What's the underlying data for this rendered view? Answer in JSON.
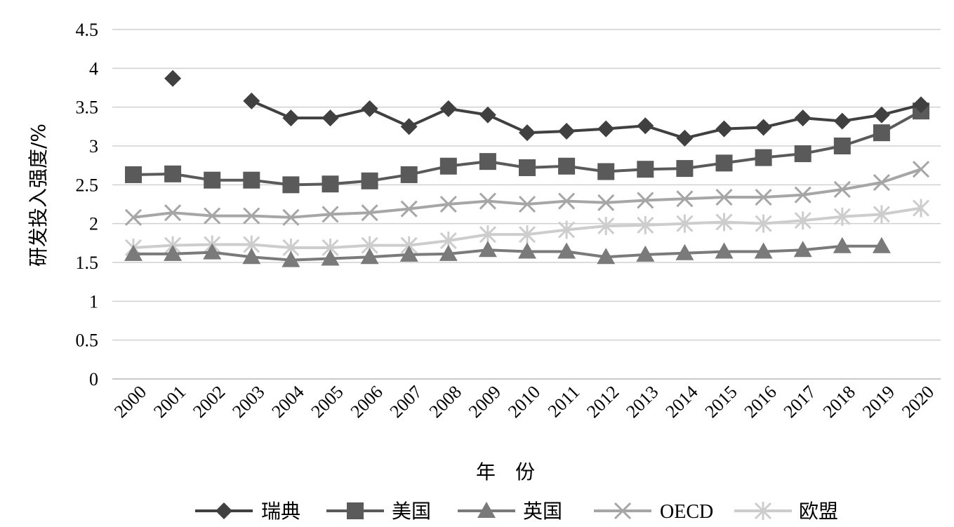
{
  "chart_data": {
    "type": "line",
    "xlabel": "年　份",
    "ylabel": "研发投入强度/%",
    "ylim": [
      0,
      4.5
    ],
    "yticks": [
      "0",
      "0.5",
      "1",
      "1.5",
      "2",
      "2.5",
      "3",
      "3.5",
      "4",
      "4.5"
    ],
    "grid": "horizontal",
    "legend": "bottom",
    "categories": [
      "2000",
      "2001",
      "2002",
      "2003",
      "2004",
      "2005",
      "2006",
      "2007",
      "2008",
      "2009",
      "2010",
      "2011",
      "2012",
      "2013",
      "2014",
      "2015",
      "2016",
      "2017",
      "2018",
      "2019",
      "2020"
    ],
    "series": [
      {
        "name": "瑞典",
        "marker": "diamond",
        "color": "#404040",
        "values": [
          null,
          3.87,
          null,
          3.58,
          3.36,
          3.36,
          3.48,
          3.25,
          3.48,
          3.4,
          3.17,
          3.19,
          3.22,
          3.26,
          3.1,
          3.22,
          3.24,
          3.36,
          3.32,
          3.4,
          3.53
        ]
      },
      {
        "name": "美国",
        "marker": "square",
        "color": "#5a5a5a",
        "values": [
          2.63,
          2.64,
          2.56,
          2.56,
          2.5,
          2.51,
          2.55,
          2.63,
          2.74,
          2.8,
          2.72,
          2.74,
          2.67,
          2.7,
          2.71,
          2.78,
          2.85,
          2.9,
          3.0,
          3.17,
          3.45
        ]
      },
      {
        "name": "英国",
        "marker": "triangle",
        "color": "#7a7a7a",
        "values": [
          1.61,
          1.61,
          1.63,
          1.57,
          1.53,
          1.55,
          1.57,
          1.6,
          1.61,
          1.66,
          1.64,
          1.64,
          1.57,
          1.6,
          1.62,
          1.64,
          1.64,
          1.66,
          1.71,
          1.71,
          null
        ]
      },
      {
        "name": "OECD",
        "marker": "x",
        "color": "#a6a6a6",
        "values": [
          2.08,
          2.14,
          2.1,
          2.1,
          2.08,
          2.12,
          2.14,
          2.19,
          2.25,
          2.29,
          2.25,
          2.29,
          2.27,
          2.3,
          2.32,
          2.34,
          2.34,
          2.37,
          2.44,
          2.53,
          2.7
        ]
      },
      {
        "name": "欧盟",
        "marker": "star",
        "color": "#cdcdcd",
        "values": [
          1.69,
          1.72,
          1.73,
          1.73,
          1.69,
          1.69,
          1.72,
          1.72,
          1.78,
          1.86,
          1.86,
          1.92,
          1.97,
          1.98,
          2.0,
          2.02,
          2.0,
          2.04,
          2.09,
          2.12,
          2.2
        ]
      }
    ]
  }
}
